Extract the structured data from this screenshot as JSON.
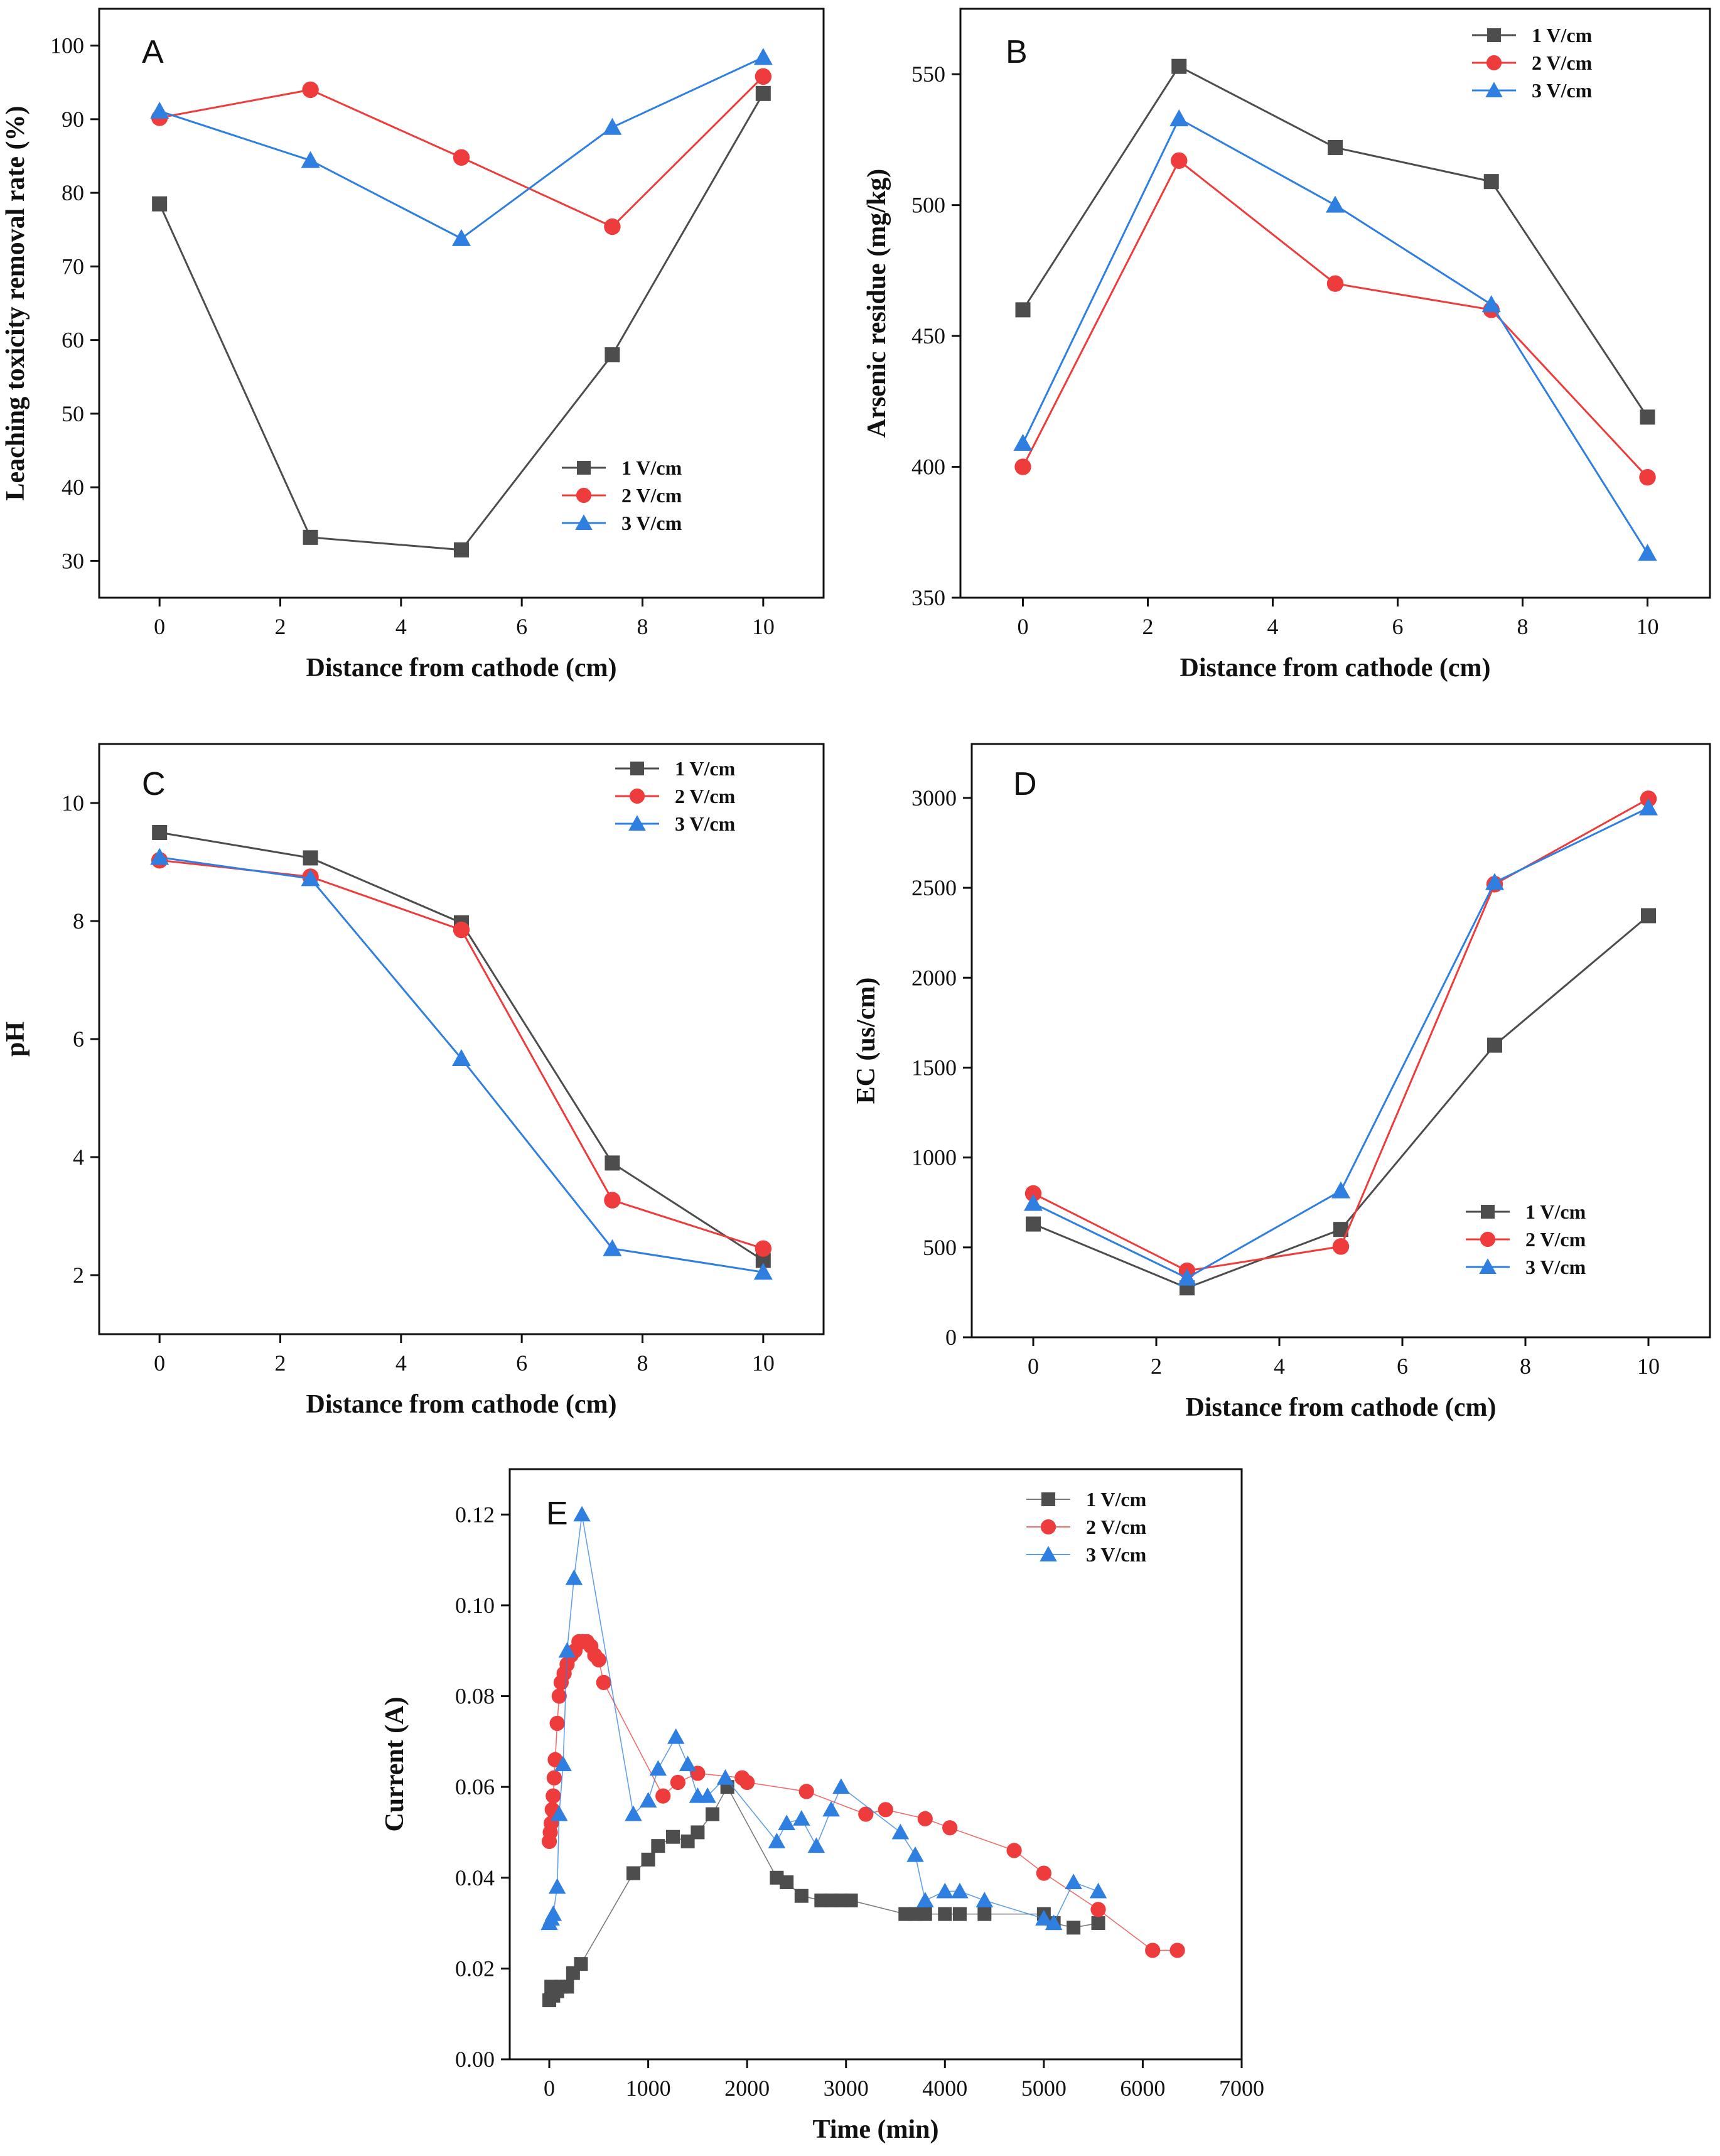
{
  "chart_data": [
    {
      "panel": "A",
      "type": "line",
      "xlabel": "Distance from cathode (cm)",
      "ylabel": "Leaching toxicity removal rate (%)",
      "xlim": [
        -1,
        11
      ],
      "ylim": [
        25,
        105
      ],
      "xticks": [
        0,
        2,
        4,
        6,
        8,
        10
      ],
      "yticks": [
        30,
        40,
        50,
        60,
        70,
        80,
        90,
        100
      ],
      "legend_position": "bottom-right",
      "series": [
        {
          "name": "1 V/cm",
          "color": "#4d4d4d",
          "marker": "square",
          "line": "solid",
          "x": [
            0,
            2.5,
            5,
            7.5,
            10
          ],
          "y": [
            78.5,
            33.2,
            31.5,
            58.0,
            93.5
          ]
        },
        {
          "name": "2 V/cm",
          "color": "#ee3b3b",
          "marker": "circle",
          "line": "solid",
          "x": [
            0,
            2.5,
            5,
            7.5,
            10
          ],
          "y": [
            90.2,
            94.0,
            84.8,
            75.4,
            95.8
          ]
        },
        {
          "name": "3 V/cm",
          "color": "#2f7fe0",
          "marker": "triangle",
          "line": "solid",
          "x": [
            0,
            2.5,
            5,
            7.5,
            10
          ],
          "y": [
            91.1,
            84.4,
            73.8,
            88.9,
            98.4
          ]
        }
      ]
    },
    {
      "panel": "B",
      "type": "line",
      "xlabel": "Distance from cathode (cm)",
      "ylabel": "Arsenic residue (mg/kg)",
      "xlim": [
        -1,
        11
      ],
      "ylim": [
        350,
        575
      ],
      "xticks": [
        0,
        2,
        4,
        6,
        8,
        10
      ],
      "yticks": [
        350,
        400,
        450,
        500,
        550
      ],
      "legend_position": "top-right",
      "series": [
        {
          "name": "1 V/cm",
          "color": "#4d4d4d",
          "marker": "square",
          "line": "solid",
          "x": [
            0,
            2.5,
            5,
            7.5,
            10
          ],
          "y": [
            460,
            553,
            522,
            509,
            419
          ]
        },
        {
          "name": "2 V/cm",
          "color": "#ee3b3b",
          "marker": "circle",
          "line": "solid",
          "x": [
            0,
            2.5,
            5,
            7.5,
            10
          ],
          "y": [
            400,
            517,
            470,
            460,
            396
          ]
        },
        {
          "name": "3 V/cm",
          "color": "#2f7fe0",
          "marker": "triangle",
          "line": "solid",
          "x": [
            0,
            2.5,
            5,
            7.5,
            10
          ],
          "y": [
            409,
            533,
            500,
            462,
            367
          ]
        }
      ]
    },
    {
      "panel": "C",
      "type": "line",
      "xlabel": "Distance from cathode (cm)",
      "ylabel": "pH",
      "xlim": [
        -1,
        11
      ],
      "ylim": [
        1,
        11
      ],
      "xticks": [
        0,
        2,
        4,
        6,
        8,
        10
      ],
      "yticks": [
        2,
        4,
        6,
        8,
        10
      ],
      "legend_position": "top-right",
      "series": [
        {
          "name": "1 V/cm",
          "color": "#4d4d4d",
          "marker": "square",
          "line": "solid",
          "x": [
            0,
            2.5,
            5,
            7.5,
            10
          ],
          "y": [
            9.5,
            9.07,
            7.97,
            3.9,
            2.25
          ]
        },
        {
          "name": "2 V/cm",
          "color": "#ee3b3b",
          "marker": "circle",
          "line": "solid",
          "x": [
            0,
            2.5,
            5,
            7.5,
            10
          ],
          "y": [
            9.03,
            8.75,
            7.85,
            3.27,
            2.45
          ]
        },
        {
          "name": "3 V/cm",
          "color": "#2f7fe0",
          "marker": "triangle",
          "line": "solid",
          "x": [
            0,
            2.5,
            5,
            7.5,
            10
          ],
          "y": [
            9.08,
            8.72,
            5.67,
            2.45,
            2.05
          ]
        }
      ]
    },
    {
      "panel": "D",
      "type": "line",
      "xlabel": "Distance from cathode (cm)",
      "ylabel": "EC (us/cm)",
      "xlim": [
        -1,
        11
      ],
      "ylim": [
        0,
        3300
      ],
      "xticks": [
        0,
        2,
        4,
        6,
        8,
        10
      ],
      "yticks": [
        0,
        500,
        1000,
        1500,
        2000,
        2500,
        3000
      ],
      "legend_position": "bottom-right",
      "series": [
        {
          "name": "1 V/cm",
          "color": "#4d4d4d",
          "marker": "square",
          "line": "solid",
          "x": [
            0,
            2.5,
            5,
            7.5,
            10
          ],
          "y": [
            630,
            275,
            600,
            1625,
            2345
          ]
        },
        {
          "name": "2 V/cm",
          "color": "#ee3b3b",
          "marker": "circle",
          "line": "solid",
          "x": [
            0,
            2.5,
            5,
            7.5,
            10
          ],
          "y": [
            800,
            370,
            505,
            2520,
            2995
          ]
        },
        {
          "name": "3 V/cm",
          "color": "#2f7fe0",
          "marker": "triangle",
          "line": "solid",
          "x": [
            0,
            2.5,
            5,
            7.5,
            10
          ],
          "y": [
            745,
            330,
            815,
            2530,
            2945
          ]
        }
      ]
    },
    {
      "panel": "E",
      "type": "line",
      "xlabel": "Time (min)",
      "ylabel": "Current (A)",
      "xlim": [
        -400,
        7000
      ],
      "ylim": [
        0,
        0.13
      ],
      "xticks": [
        0,
        1000,
        2000,
        3000,
        4000,
        5000,
        6000,
        7000
      ],
      "yticks": [
        0.0,
        0.02,
        0.04,
        0.06,
        0.08,
        0.1,
        0.12
      ],
      "ytick_labels": [
        "0.00",
        "0.02",
        "0.04",
        "0.06",
        "0.08",
        "0.10",
        "0.12"
      ],
      "legend_position": "top-right",
      "series": [
        {
          "name": "1 V/cm",
          "color": "#4d4d4d",
          "marker": "square",
          "line": "thin",
          "x": [
            0,
            20,
            40,
            80,
            120,
            180,
            240,
            320,
            850,
            1000,
            1100,
            1250,
            1400,
            1500,
            1650,
            1800,
            2300,
            2400,
            2550,
            2750,
            2850,
            2950,
            3050,
            3600,
            3700,
            3800,
            4000,
            4150,
            4400,
            5000,
            5100,
            5300,
            5550
          ],
          "y": [
            0.013,
            0.016,
            0.014,
            0.015,
            0.016,
            0.016,
            0.019,
            0.021,
            0.041,
            0.044,
            0.047,
            0.049,
            0.048,
            0.05,
            0.054,
            0.06,
            0.04,
            0.039,
            0.036,
            0.035,
            0.035,
            0.035,
            0.035,
            0.032,
            0.032,
            0.032,
            0.032,
            0.032,
            0.032,
            0.032,
            0.03,
            0.029,
            0.03
          ]
        },
        {
          "name": "2 V/cm",
          "color": "#ee3b3b",
          "marker": "circle",
          "line": "thin",
          "x": [
            0,
            10,
            20,
            30,
            40,
            50,
            60,
            80,
            100,
            120,
            150,
            180,
            220,
            260,
            300,
            340,
            380,
            420,
            460,
            500,
            550,
            1150,
            1300,
            1500,
            1950,
            2000,
            2600,
            3200,
            3400,
            3800,
            4050,
            4700,
            5000,
            5550,
            6100,
            6350
          ],
          "y": [
            0.048,
            0.05,
            0.052,
            0.055,
            0.058,
            0.062,
            0.066,
            0.074,
            0.08,
            0.083,
            0.085,
            0.087,
            0.089,
            0.09,
            0.092,
            0.092,
            0.092,
            0.091,
            0.089,
            0.088,
            0.083,
            0.058,
            0.061,
            0.063,
            0.062,
            0.061,
            0.059,
            0.054,
            0.055,
            0.053,
            0.051,
            0.046,
            0.041,
            0.033,
            0.024,
            0.024
          ]
        },
        {
          "name": "3 V/cm",
          "color": "#2f7fe0",
          "marker": "triangle",
          "line": "thin",
          "x": [
            0,
            20,
            40,
            80,
            100,
            140,
            180,
            250,
            330,
            850,
            1000,
            1100,
            1280,
            1400,
            1500,
            1600,
            1780,
            2300,
            2400,
            2550,
            2700,
            2850,
            2950,
            3550,
            3700,
            3800,
            4000,
            4150,
            4400,
            5000,
            5100,
            5300,
            5550
          ],
          "y": [
            0.03,
            0.031,
            0.032,
            0.038,
            0.054,
            0.065,
            0.09,
            0.106,
            0.12,
            0.054,
            0.057,
            0.064,
            0.071,
            0.065,
            0.058,
            0.058,
            0.062,
            0.048,
            0.052,
            0.053,
            0.047,
            0.055,
            0.06,
            0.05,
            0.045,
            0.035,
            0.037,
            0.037,
            0.035,
            0.031,
            0.03,
            0.039,
            0.037
          ]
        }
      ]
    }
  ]
}
